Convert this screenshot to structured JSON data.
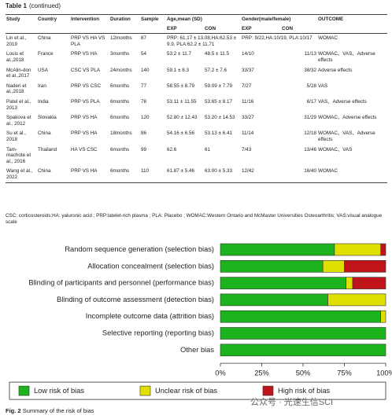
{
  "table": {
    "title": "Table 1",
    "title_note": "(continued)",
    "columns": [
      "Study",
      "Country",
      "Intervention",
      "Duration",
      "Sample",
      "Age,mean (SD)",
      "Gender(male/female)",
      "OUTCOME"
    ],
    "subcolumns": [
      "EXP",
      "CON",
      "EXP",
      "CON"
    ],
    "rows": [
      [
        "Lin et al., 2019",
        "China",
        "PRP VS HA VS PLA",
        "12months",
        "87",
        "PRP: 61.17 ± 13.08,HA:62.53 ± 9.9, PLA:62.2 ± 11.71",
        "PRP: 9/22,HA:10/19, PLA:10/17",
        "WOMAC"
      ],
      [
        "Louis et al.,2018",
        "France",
        "PRP VS HA",
        "3months",
        "54",
        "53.2 ± 11.7",
        "48.5 ± 11.5",
        "14/10",
        "11/13",
        "WOMAC、VAS、Adverse effects"
      ],
      [
        "McAlin-don et al.,2017",
        "USA",
        "CSC VS PLA",
        "24months",
        "140",
        "59.1 ± 8.3",
        "57.2 ± 7.6",
        "33/37",
        "38/32",
        "Adverse effects"
      ],
      [
        "Naderi et al.,2018",
        "Iran",
        "PRP VS CSC",
        "6months",
        "77",
        "58.55 ± 8.79",
        "59.09 ± 7.79",
        "7/27",
        "5/28",
        "VAS"
      ],
      [
        "Patel et al., 2013",
        "India",
        "PRP VS PLA",
        "6months",
        "78",
        "53.11 ± 11.55",
        "53.65 ± 8.17",
        "11/16",
        "6/17",
        "VAS、Adverse effects"
      ],
      [
        "Spakova et al., 2012",
        "Slovakia",
        "PRP VS HA",
        "6months",
        "120",
        "52.80 ± 12.43",
        "53.20 ± 14.53",
        "33/27",
        "31/29",
        "WOMAC、Adverse effects"
      ],
      [
        "Su et al., 2018",
        "China",
        "PRP VS HA",
        "18months",
        "86",
        "54.16 ± 6.56",
        "53.13 ± 6.41",
        "11/14",
        "12/18",
        "WOMAC、VAS、Adverse effects"
      ],
      [
        "Tam-machote et al., 2016",
        "Thailand",
        "HA VS CSC",
        "6months",
        "99",
        "62.6",
        "61",
        "7/43",
        "13/46",
        "WOMAC、VAS"
      ],
      [
        "Wang et al., 2022",
        "China",
        "PRP VS HA",
        "6months",
        "110",
        "61.87 ± 5.46",
        "63.00 ± 5.33",
        "12/42",
        "16/40",
        "WOMAC"
      ]
    ],
    "footnote": "CSC: corticosteroids;HA: yaluronic acid ; PRP:latelet-rich plasma ; PLA: Placebo ; WOMAC:Western Ontario and McMaster Universities Osteoarthritis; VAS:visual analogue scale"
  },
  "chart_data": {
    "type": "stacked_barh",
    "categories": [
      "Random sequence generation (selection bias)",
      "Allocation concealment (selection bias)",
      "Blinding of participants and personnel (performance bias)",
      "Blinding of outcome assessment (detection bias)",
      "Incomplete outcome data (attrition bias)",
      "Selective reporting (reporting bias)",
      "Other bias"
    ],
    "series": [
      {
        "name": "Low risk of bias",
        "color": "#1db31d",
        "values": [
          69,
          62,
          76,
          65,
          97,
          100,
          100
        ]
      },
      {
        "name": "Unclear risk of bias",
        "color": "#e0e000",
        "values": [
          28,
          13,
          4,
          35,
          3,
          0,
          0
        ]
      },
      {
        "name": "High risk of bias",
        "color": "#c0141b",
        "values": [
          3,
          25,
          20,
          0,
          0,
          0,
          0
        ]
      }
    ],
    "xlim": [
      0,
      100
    ],
    "xticks": [
      {
        "value": 0,
        "label": "0%"
      },
      {
        "value": 25,
        "label": "25%"
      },
      {
        "value": 50,
        "label": "50%"
      },
      {
        "value": 75,
        "label": "75%"
      },
      {
        "value": 100,
        "label": "100%"
      }
    ]
  },
  "figure": {
    "label": "Fig. 2",
    "caption": "Summary of the risk of bias"
  },
  "watermark": "公众号 · 光速生信SCI"
}
